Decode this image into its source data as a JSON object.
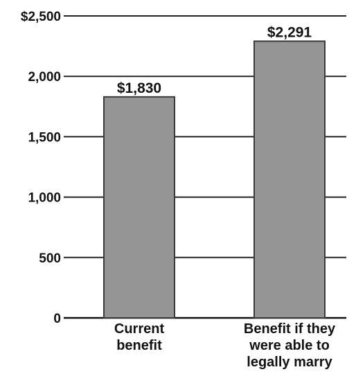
{
  "chart_data": {
    "type": "bar",
    "title": "",
    "xlabel": "",
    "ylabel": "",
    "categories": [
      [
        "Current",
        "benefit"
      ],
      [
        "Benefit if they",
        "were able to",
        "legally marry"
      ]
    ],
    "values": [
      1830,
      2291
    ],
    "value_labels": [
      "$1,830",
      "$2,291"
    ],
    "ylim": [
      0,
      2500
    ],
    "yticks": [
      0,
      500,
      1000,
      1500,
      2000,
      2500
    ],
    "ytick_labels": [
      "0",
      "500",
      "1,000",
      "1,500",
      "2,000",
      "$2,500"
    ],
    "grid": true,
    "legend": "none",
    "colors": {
      "bar": "#959595",
      "grid": "#222222",
      "text": "#111111"
    }
  }
}
